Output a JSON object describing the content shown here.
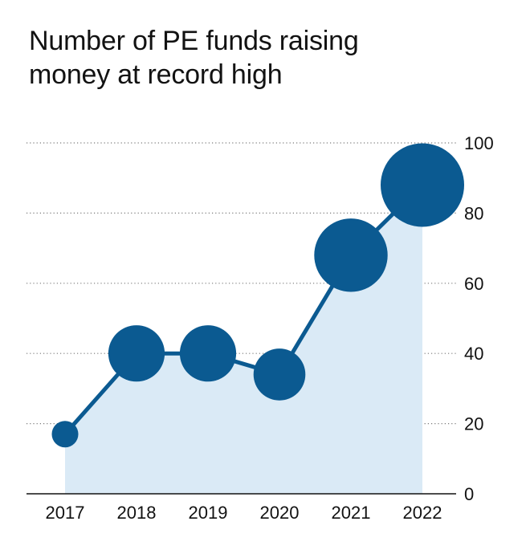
{
  "title_lines": [
    "Number of PE funds raising",
    "money at record high"
  ],
  "colors": {
    "line": "#0b5a91",
    "area": "#daeaf6",
    "grid": "#7a7a7a",
    "axis": "#121212",
    "text": "#121212"
  },
  "chart_data": {
    "type": "line",
    "title": "Number of PE funds raising money at record high",
    "xlabel": "",
    "ylabel": "",
    "categories": [
      "2017",
      "2018",
      "2019",
      "2020",
      "2021",
      "2022"
    ],
    "series": [
      {
        "values": [
          17,
          40,
          40,
          34,
          68,
          88
        ],
        "marker": "circle sized by value",
        "area_fill": true
      }
    ],
    "ylim": [
      0,
      100
    ],
    "yticks": [
      0,
      20,
      40,
      60,
      80,
      100
    ],
    "y_axis_position": "right",
    "grid": "horizontal dotted"
  }
}
